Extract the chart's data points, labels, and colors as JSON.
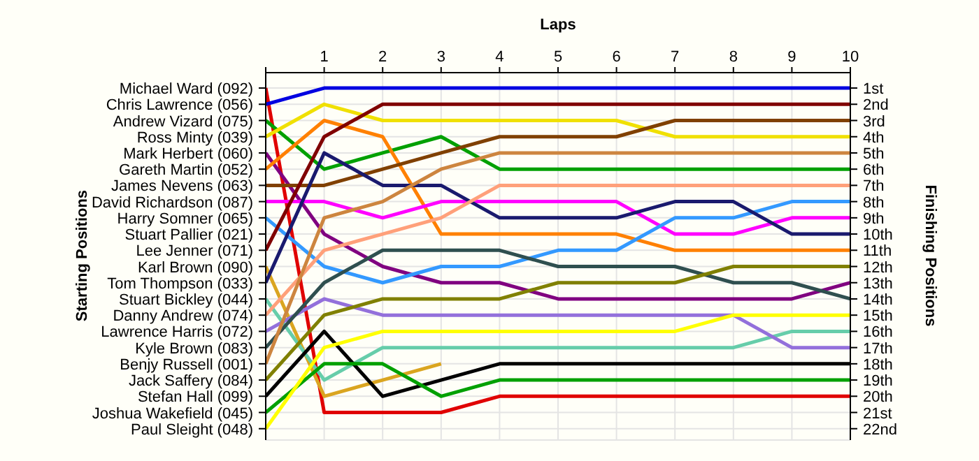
{
  "chart_data": {
    "type": "line",
    "xlabel": "Laps",
    "annotations": [
      "Starting Positions"
    ],
    "y2label": "Finishing Positions",
    "x": [
      0,
      1,
      2,
      3,
      4,
      5,
      6,
      7,
      8,
      9,
      10
    ],
    "xlim": [
      0,
      10
    ],
    "xticks": [
      {
        "value": 0,
        "label": null
      },
      1,
      2,
      3,
      4,
      5,
      6,
      7,
      8,
      9,
      10
    ],
    "y_categories": [
      "Michael Ward (092)",
      "Chris Lawrence (056)",
      "Andrew Vizard (075)",
      "Ross Minty (039)",
      "Mark Herbert (060)",
      "Gareth Martin (052)",
      "James Nevens (063)",
      "David Richardson (087)",
      "Harry Somner (065)",
      "Stuart Pallier (021)",
      "Lee Jenner (071)",
      "Karl Brown (090)",
      "Tom Thompson (033)",
      "Stuart Bickley (044)",
      "Danny Andrew (074)",
      "Lawrence Harris (072)",
      "Kyle Brown (083)",
      "Benjy Russell (001)",
      "Jack Saffery (084)",
      "Stefan Hall (099)",
      "Joshua Wakefield (045)",
      "Paul Sleight (048)"
    ],
    "y2lim": [
      22.7,
      0.05
    ],
    "y2ticks": [
      {
        "value": 1,
        "label": "1st"
      },
      {
        "value": 2,
        "label": "2nd"
      },
      {
        "value": 3,
        "label": "3rd"
      },
      {
        "value": 4,
        "label": "4th"
      },
      {
        "value": 5,
        "label": "5th"
      },
      {
        "value": 6,
        "label": "6th"
      },
      {
        "value": 7,
        "label": "7th"
      },
      {
        "value": 8,
        "label": "8th"
      },
      {
        "value": 9,
        "label": "9th"
      },
      {
        "value": 10,
        "label": "10th"
      },
      {
        "value": 11,
        "label": "11th"
      },
      {
        "value": 12,
        "label": "12th"
      },
      {
        "value": 13,
        "label": "13th"
      },
      {
        "value": 14,
        "label": "14th"
      },
      {
        "value": 15,
        "label": "15th"
      },
      {
        "value": 16,
        "label": "16th"
      },
      {
        "value": 17,
        "label": "17th"
      },
      {
        "value": 18,
        "label": "18th"
      },
      {
        "value": 19,
        "label": "19th"
      },
      {
        "value": 20,
        "label": "20th"
      },
      {
        "value": 21,
        "label": "21st"
      },
      {
        "value": 22,
        "label": "22nd"
      }
    ],
    "grid": true,
    "marker": "none",
    "line_style": "solid",
    "series": [
      {
        "axis": "y2",
        "color": "#e00000",
        "values": [
          1,
          21,
          21,
          21,
          20,
          20,
          20,
          20,
          20,
          20,
          20
        ]
      },
      {
        "axis": "y2",
        "color": "#0000e0",
        "values": [
          2,
          1,
          1,
          1,
          1,
          1,
          1,
          1,
          1,
          1,
          1
        ]
      },
      {
        "axis": "y2",
        "color": "#00a000",
        "values": [
          3,
          6,
          5,
          4,
          6,
          6,
          6,
          6,
          6,
          6,
          6
        ]
      },
      {
        "axis": "y2",
        "color": "#f0e000",
        "values": [
          4,
          2,
          3,
          3,
          3,
          3,
          3,
          4,
          4,
          4,
          4
        ]
      },
      {
        "axis": "y2",
        "color": "#800080",
        "values": [
          5,
          10,
          12,
          13,
          13,
          14,
          14,
          14,
          14,
          14,
          13
        ]
      },
      {
        "axis": "y2",
        "color": "#ff8000",
        "values": [
          6,
          3,
          4,
          10,
          10,
          10,
          10,
          11,
          11,
          11,
          11
        ]
      },
      {
        "axis": "y2",
        "color": "#804000",
        "values": [
          7,
          7,
          6,
          5,
          4,
          4,
          4,
          3,
          3,
          3,
          3
        ]
      },
      {
        "axis": "y2",
        "color": "#ff00ff",
        "values": [
          8,
          8,
          9,
          8,
          8,
          8,
          8,
          10,
          10,
          9,
          9
        ]
      },
      {
        "axis": "y2",
        "color": "#3399ff",
        "values": [
          9,
          12,
          13,
          12,
          12,
          11,
          11,
          9,
          9,
          8,
          8
        ]
      },
      {
        "axis": "y2",
        "color": "#800000",
        "values": [
          11,
          4,
          2,
          2,
          2,
          2,
          2,
          2,
          2,
          2,
          2
        ]
      },
      {
        "axis": "y2",
        "color": "#daa520",
        "values": [
          12,
          20,
          19,
          18,
          null,
          null,
          null,
          null,
          null,
          null,
          null
        ]
      },
      {
        "axis": "y2",
        "color": "#1a1a6e",
        "values": [
          13,
          5,
          7,
          7,
          9,
          9,
          9,
          8,
          8,
          10,
          10
        ]
      },
      {
        "axis": "y2",
        "color": "#66cdaa",
        "values": [
          14,
          19,
          17,
          17,
          17,
          17,
          17,
          17,
          17,
          16,
          16
        ]
      },
      {
        "axis": "y2",
        "color": "#ffa07a",
        "values": [
          15,
          11,
          10,
          9,
          7,
          7,
          7,
          7,
          7,
          7,
          7
        ]
      },
      {
        "axis": "y2",
        "color": "#9370db",
        "values": [
          16,
          14,
          15,
          15,
          15,
          15,
          15,
          15,
          15,
          17,
          17
        ]
      },
      {
        "axis": "y2",
        "color": "#2f4f4f",
        "values": [
          17,
          13,
          11,
          11,
          11,
          12,
          12,
          12,
          13,
          13,
          14
        ]
      },
      {
        "axis": "y2",
        "color": "#cd853f",
        "values": [
          18,
          9,
          8,
          6,
          5,
          5,
          5,
          5,
          5,
          5,
          5
        ]
      },
      {
        "axis": "y2",
        "color": "#808000",
        "values": [
          19,
          15,
          14,
          14,
          14,
          13,
          13,
          13,
          12,
          12,
          12
        ]
      },
      {
        "axis": "y2",
        "color": "#000000",
        "values": [
          20,
          16,
          20,
          19,
          18,
          18,
          18,
          18,
          18,
          18,
          18
        ]
      },
      {
        "axis": "y2",
        "color": "#00a000",
        "values": [
          21,
          18,
          18,
          20,
          19,
          19,
          19,
          19,
          19,
          19,
          19
        ]
      },
      {
        "axis": "y2",
        "color": "#ffff00",
        "values": [
          22,
          17,
          16,
          16,
          16,
          16,
          16,
          16,
          15,
          15,
          15
        ]
      }
    ]
  }
}
